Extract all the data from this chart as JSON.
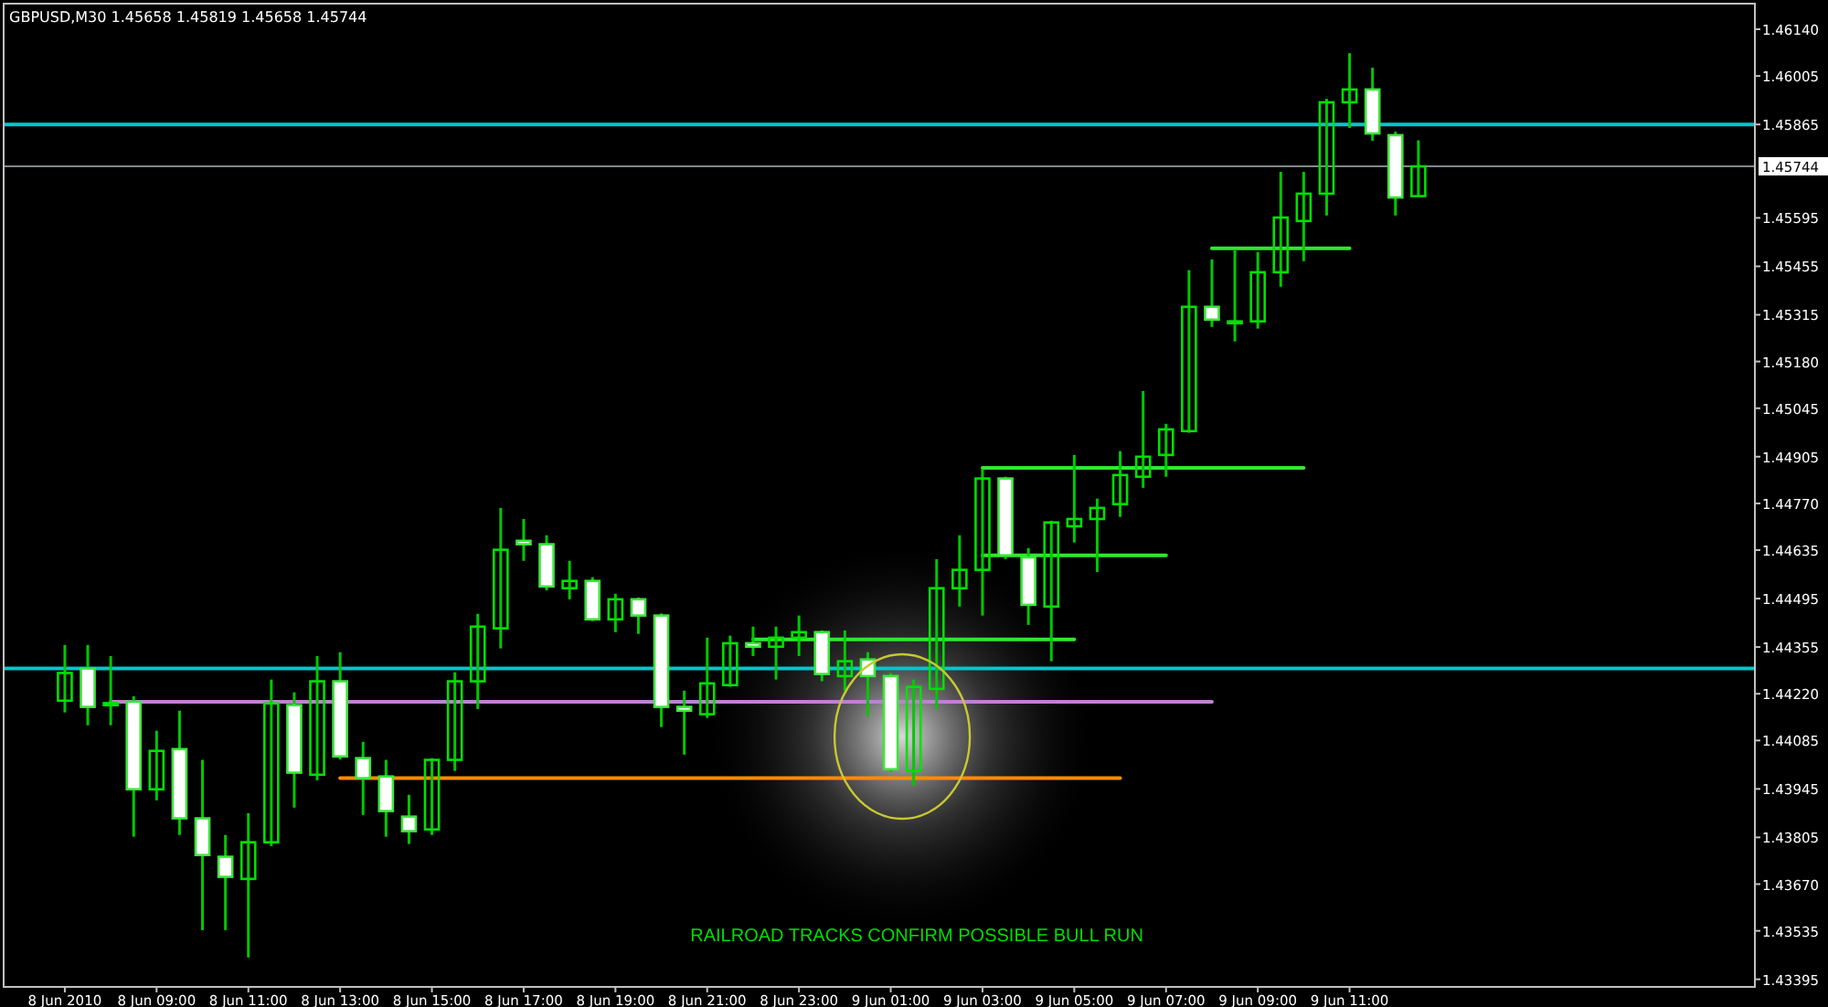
{
  "chart_data": {
    "type": "candlestick",
    "title": "GBPUSD,M30  1.45658 1.45819 1.45658 1.45744",
    "annotations": [
      "RAILROAD TRACKS CONFIRM POSSIBLE BULL RUN"
    ],
    "x": [
      "2010-06-08T07:00",
      "2010-06-08T07:30",
      "2010-06-08T08:00",
      "2010-06-08T08:30",
      "2010-06-08T09:00",
      "2010-06-08T09:30",
      "2010-06-08T10:00",
      "2010-06-08T10:30",
      "2010-06-08T11:00",
      "2010-06-08T11:30",
      "2010-06-08T12:00",
      "2010-06-08T12:30",
      "2010-06-08T13:00",
      "2010-06-08T13:30",
      "2010-06-08T14:00",
      "2010-06-08T14:30",
      "2010-06-08T15:00",
      "2010-06-08T15:30",
      "2010-06-08T16:00",
      "2010-06-08T16:30",
      "2010-06-08T17:00",
      "2010-06-08T17:30",
      "2010-06-08T18:00",
      "2010-06-08T18:30",
      "2010-06-08T19:00",
      "2010-06-08T19:30",
      "2010-06-08T20:00",
      "2010-06-08T20:30",
      "2010-06-08T21:00",
      "2010-06-08T21:30",
      "2010-06-08T22:00",
      "2010-06-08T22:30",
      "2010-06-08T23:00",
      "2010-06-08T23:30",
      "2010-06-09T00:00",
      "2010-06-09T00:30",
      "2010-06-09T01:00",
      "2010-06-09T01:30",
      "2010-06-09T02:00",
      "2010-06-09T02:30",
      "2010-06-09T03:00",
      "2010-06-09T03:30",
      "2010-06-09T04:00",
      "2010-06-09T04:30",
      "2010-06-09T05:00",
      "2010-06-09T05:30",
      "2010-06-09T06:00",
      "2010-06-09T06:30",
      "2010-06-09T07:00",
      "2010-06-09T07:30",
      "2010-06-09T08:00",
      "2010-06-09T08:30",
      "2010-06-09T09:00",
      "2010-06-09T09:30",
      "2010-06-09T10:00",
      "2010-06-09T10:30",
      "2010-06-09T11:00",
      "2010-06-09T11:30",
      "2010-06-09T12:00",
      "2010-06-09T12:30"
    ],
    "ohlc": [
      [
        1.442,
        1.44361,
        1.44166,
        1.4428
      ],
      [
        1.44293,
        1.44361,
        1.44129,
        1.44182
      ],
      [
        1.44187,
        1.44329,
        1.44129,
        1.44193
      ],
      [
        1.44197,
        1.44213,
        1.43807,
        1.43944
      ],
      [
        1.43944,
        1.44113,
        1.43912,
        1.44055
      ],
      [
        1.4406,
        1.44171,
        1.43812,
        1.4386
      ],
      [
        1.4386,
        1.44029,
        1.43537,
        1.43754
      ],
      [
        1.43749,
        1.43812,
        1.43537,
        1.43691
      ],
      [
        1.43685,
        1.43875,
        1.43458,
        1.43791
      ],
      [
        1.43791,
        1.44261,
        1.4378,
        1.44192
      ],
      [
        1.44187,
        1.44224,
        1.43891,
        1.43992
      ],
      [
        1.43986,
        1.44329,
        1.4397,
        1.44256
      ],
      [
        1.44256,
        1.4434,
        1.4403,
        1.44039
      ],
      [
        1.44034,
        1.44081,
        1.4387,
        1.43976
      ],
      [
        1.43981,
        1.44029,
        1.43807,
        1.43881
      ],
      [
        1.43865,
        1.43928,
        1.43786,
        1.43823
      ],
      [
        1.43828,
        1.44034,
        1.43812,
        1.44029
      ],
      [
        1.44029,
        1.44282,
        1.43997,
        1.44256
      ],
      [
        1.44256,
        1.44451,
        1.44176,
        1.44414
      ],
      [
        1.44409,
        1.44757,
        1.44351,
        1.44636
      ],
      [
        1.44662,
        1.44725,
        1.44604,
        1.44652
      ],
      [
        1.44652,
        1.44678,
        1.44519,
        1.4453
      ],
      [
        1.44525,
        1.44604,
        1.44493,
        1.44546
      ],
      [
        1.44546,
        1.44557,
        1.4443,
        1.44435
      ],
      [
        1.44435,
        1.44509,
        1.44398,
        1.44493
      ],
      [
        1.44493,
        1.44498,
        1.44393,
        1.44446
      ],
      [
        1.44446,
        1.44452,
        1.44124,
        1.44182
      ],
      [
        1.44182,
        1.44229,
        1.44044,
        1.44171
      ],
      [
        1.44161,
        1.44382,
        1.4415,
        1.4425
      ],
      [
        1.44245,
        1.44388,
        1.4424,
        1.44366
      ],
      [
        1.44366,
        1.44414,
        1.44329,
        1.44356
      ],
      [
        1.44356,
        1.44414,
        1.44261,
        1.44382
      ],
      [
        1.44382,
        1.44446,
        1.44329,
        1.44398
      ],
      [
        1.44398,
        1.44403,
        1.44256,
        1.44277
      ],
      [
        1.44271,
        1.44403,
        1.44229,
        1.44314
      ],
      [
        1.44319,
        1.4434,
        1.44155,
        1.44271
      ],
      [
        1.44271,
        1.4428,
        1.43995,
        1.44002
      ],
      [
        1.43997,
        1.44261,
        1.43955,
        1.4424
      ],
      [
        1.44234,
        1.44609,
        1.44176,
        1.44525
      ],
      [
        1.44525,
        1.44678,
        1.44472,
        1.44578
      ],
      [
        1.44578,
        1.44868,
        1.44446,
        1.44842
      ],
      [
        1.44842,
        1.44847,
        1.44609,
        1.4462
      ],
      [
        1.44614,
        1.44641,
        1.44419,
        1.44477
      ],
      [
        1.44472,
        1.4472,
        1.44314,
        1.44715
      ],
      [
        1.44704,
        1.4491,
        1.44657,
        1.44725
      ],
      [
        1.44725,
        1.44784,
        1.44572,
        1.44757
      ],
      [
        1.44768,
        1.44921,
        1.44731,
        1.44852
      ],
      [
        1.44847,
        1.45095,
        1.44815,
        1.44905
      ],
      [
        1.4491,
        1.45,
        1.44847,
        1.44984
      ],
      [
        1.44979,
        1.45444,
        1.44974,
        1.45338
      ],
      [
        1.45338,
        1.45475,
        1.4528,
        1.45301
      ],
      [
        1.45294,
        1.45502,
        1.45238,
        1.45296
      ],
      [
        1.45296,
        1.45496,
        1.45275,
        1.45438
      ],
      [
        1.45438,
        1.45728,
        1.45396,
        1.45596
      ],
      [
        1.45586,
        1.45728,
        1.4547,
        1.45665
      ],
      [
        1.45665,
        1.45939,
        1.45602,
        1.45929
      ],
      [
        1.45929,
        1.46071,
        1.45855,
        1.45966
      ],
      [
        1.45966,
        1.46029,
        1.45818,
        1.45839
      ],
      [
        1.45834,
        1.45844,
        1.45602,
        1.45654
      ],
      [
        1.45658,
        1.45819,
        1.45658,
        1.45744
      ]
    ],
    "series": [
      {
        "type": "line",
        "color": "#c080d0",
        "x": [
          "2010-06-08T08:00",
          "2010-06-09T08:00"
        ],
        "values": [
          1.44197,
          1.44197
        ]
      },
      {
        "type": "line",
        "color": "#ff8c00",
        "x": [
          "2010-06-08T13:00",
          "2010-06-09T06:00"
        ],
        "values": [
          1.43976,
          1.43976
        ]
      },
      {
        "type": "line",
        "color": "#32e632",
        "x": [
          "2010-06-08T22:00",
          "2010-06-09T05:00"
        ],
        "values": [
          1.44377,
          1.44377
        ]
      },
      {
        "type": "line",
        "color": "#32e632",
        "x": [
          "2010-06-09T03:00",
          "2010-06-09T07:00"
        ],
        "values": [
          1.4462,
          1.4462
        ]
      },
      {
        "type": "line",
        "color": "#32e632",
        "x": [
          "2010-06-09T03:00",
          "2010-06-09T10:00"
        ],
        "values": [
          1.44873,
          1.44873
        ]
      },
      {
        "type": "line",
        "color": "#32e632",
        "x": [
          "2010-06-09T08:00",
          "2010-06-09T11:00"
        ],
        "values": [
          1.45507,
          1.45507
        ]
      }
    ],
    "ref_lines": [
      {
        "axis": "y",
        "value": 1.45865,
        "color": "#00c8c8"
      },
      {
        "axis": "y",
        "value": 1.44293,
        "color": "#00c8c8"
      },
      {
        "axis": "y",
        "value": 1.45744,
        "label": "1.45744",
        "color": "#808890"
      }
    ],
    "xlim": [
      "2010-06-08T05:40",
      "2010-06-09T19:50"
    ],
    "xticks": [
      {
        "value": "2010-06-08T07:00",
        "label": "8 Jun 2010"
      },
      {
        "value": "2010-06-08T09:00",
        "label": "8 Jun 09:00"
      },
      {
        "value": "2010-06-08T11:00",
        "label": "8 Jun 11:00"
      },
      {
        "value": "2010-06-08T13:00",
        "label": "8 Jun 13:00"
      },
      {
        "value": "2010-06-08T15:00",
        "label": "8 Jun 15:00"
      },
      {
        "value": "2010-06-08T17:00",
        "label": "8 Jun 17:00"
      },
      {
        "value": "2010-06-08T19:00",
        "label": "8 Jun 19:00"
      },
      {
        "value": "2010-06-08T21:00",
        "label": "8 Jun 21:00"
      },
      {
        "value": "2010-06-08T23:00",
        "label": "8 Jun 23:00"
      },
      {
        "value": "2010-06-09T01:00",
        "label": "9 Jun 01:00"
      },
      {
        "value": "2010-06-09T03:00",
        "label": "9 Jun 03:00"
      },
      {
        "value": "2010-06-09T05:00",
        "label": "9 Jun 05:00"
      },
      {
        "value": "2010-06-09T07:00",
        "label": "9 Jun 07:00"
      },
      {
        "value": "2010-06-09T09:00",
        "label": "9 Jun 09:00"
      },
      {
        "value": "2010-06-09T11:00",
        "label": "9 Jun 11:00"
      }
    ],
    "ylim": [
      1.43373,
      1.46214
    ],
    "yticks": [
      {
        "value": 1.4614,
        "label": "1.46140"
      },
      {
        "value": 1.46005,
        "label": "1.46005"
      },
      {
        "value": 1.45865,
        "label": "1.45865"
      },
      {
        "value": 1.45595,
        "label": "1.45595"
      },
      {
        "value": 1.45455,
        "label": "1.45455"
      },
      {
        "value": 1.45315,
        "label": "1.45315"
      },
      {
        "value": 1.4518,
        "label": "1.45180"
      },
      {
        "value": 1.45045,
        "label": "1.45045"
      },
      {
        "value": 1.44905,
        "label": "1.44905"
      },
      {
        "value": 1.4477,
        "label": "1.44770"
      },
      {
        "value": 1.44635,
        "label": "1.44635"
      },
      {
        "value": 1.44495,
        "label": "1.44495"
      },
      {
        "value": 1.44355,
        "label": "1.44355"
      },
      {
        "value": 1.4422,
        "label": "1.44220"
      },
      {
        "value": 1.44085,
        "label": "1.44085"
      },
      {
        "value": 1.43945,
        "label": "1.43945"
      },
      {
        "value": 1.43805,
        "label": "1.43805"
      },
      {
        "value": 1.4367,
        "label": "1.43670"
      },
      {
        "value": 1.43535,
        "label": "1.43535"
      },
      {
        "value": 1.43395,
        "label": "1.43395"
      }
    ]
  }
}
